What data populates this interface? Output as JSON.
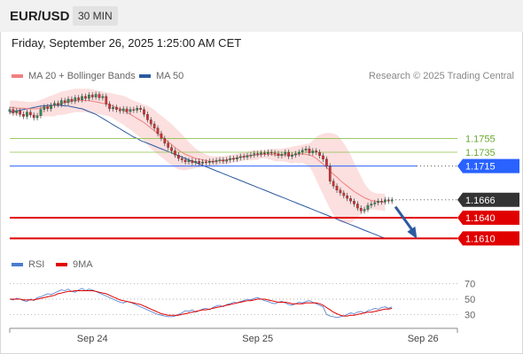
{
  "header": {
    "pair": "EUR/USD",
    "timeframe": "30 MIN"
  },
  "datetime": "Friday, September 26, 2025 1:25:00 AM CET",
  "legend": {
    "ma20_label": "MA 20 + Bollinger Bands",
    "ma20_color": "#f08080",
    "ma50_label": "MA 50",
    "ma50_color": "#2c5aa0"
  },
  "credit": "Research © 2025 Trading Central",
  "rsi_legend": {
    "rsi_label": "RSI",
    "rsi_color": "#4a7bd0",
    "ma_label": "9MA",
    "ma_color": "#e00000"
  },
  "chart_data": [
    {
      "type": "line",
      "title": "",
      "price_range": [
        1.159,
        1.183
      ],
      "time_range": [
        0,
        130
      ],
      "x_ticks": [
        {
          "t": 24,
          "label": "Sep 24"
        },
        {
          "t": 72,
          "label": "Sep 25"
        },
        {
          "t": 120,
          "label": "Sep 26"
        }
      ],
      "levels": [
        {
          "name": "resistance-2",
          "value": 1.1755,
          "label": "1.1755",
          "color": "#8bc34a",
          "style": "thin"
        },
        {
          "name": "resistance-1",
          "value": 1.1735,
          "label": "1.1735",
          "color": "#8bc34a",
          "style": "thin"
        },
        {
          "name": "pivot",
          "value": 1.1715,
          "label": "1.1715",
          "color": "#2962ff",
          "style": "tag"
        },
        {
          "name": "last-price",
          "value": 1.1666,
          "label": "1.1666",
          "color": "#333333",
          "style": "tag"
        },
        {
          "name": "support-1",
          "value": 1.164,
          "label": "1.1640",
          "color": "#e00000",
          "style": "tag"
        },
        {
          "name": "support-2",
          "value": 1.161,
          "label": "1.1610",
          "color": "#e00000",
          "style": "tag"
        }
      ],
      "close": [
        1.1797,
        1.1792,
        1.1795,
        1.179,
        1.1787,
        1.1793,
        1.1789,
        1.1785,
        1.1788,
        1.1797,
        1.1801,
        1.1798,
        1.1803,
        1.1806,
        1.1804,
        1.181,
        1.1807,
        1.1812,
        1.1809,
        1.1814,
        1.1811,
        1.1816,
        1.1813,
        1.1818,
        1.1815,
        1.1819,
        1.1814,
        1.1816,
        1.1805,
        1.1798,
        1.18,
        1.1797,
        1.1795,
        1.1798,
        1.1794,
        1.1797,
        1.1796,
        1.1799,
        1.1797,
        1.179,
        1.1782,
        1.1776,
        1.177,
        1.1762,
        1.1755,
        1.1748,
        1.1742,
        1.1737,
        1.1731,
        1.1726,
        1.1724,
        1.1721,
        1.1723,
        1.172,
        1.1722,
        1.1719,
        1.1721,
        1.172,
        1.1722,
        1.1721,
        1.1723,
        1.1724,
        1.1722,
        1.1724,
        1.1726,
        1.1725,
        1.1727,
        1.1729,
        1.1728,
        1.173,
        1.1731,
        1.1733,
        1.1732,
        1.1734,
        1.1733,
        1.1735,
        1.1734,
        1.1733,
        1.173,
        1.1732,
        1.1735,
        1.1729,
        1.1731,
        1.1733,
        1.1735,
        1.1738,
        1.174,
        1.1734,
        1.1737,
        1.1735,
        1.173,
        1.1725,
        1.1715,
        1.1693,
        1.1686,
        1.168,
        1.1676,
        1.1672,
        1.1668,
        1.1664,
        1.166,
        1.1654,
        1.165,
        1.1652,
        1.1658,
        1.166,
        1.1662,
        1.1664,
        1.1663,
        1.1666,
        1.1664,
        1.1666
      ],
      "ma20": [
        1.18,
        1.18,
        1.1799,
        1.1799,
        1.1799,
        1.1798,
        1.1798,
        1.1798,
        1.1798,
        1.1799,
        1.18,
        1.1801,
        1.1802,
        1.1803,
        1.1805,
        1.1806,
        1.1807,
        1.1808,
        1.1809,
        1.181,
        1.181,
        1.181,
        1.181,
        1.181,
        1.1809,
        1.1808,
        1.1807,
        1.1806,
        1.1805,
        1.1804,
        1.1802,
        1.18,
        1.1798,
        1.1796,
        1.1793,
        1.179,
        1.1787,
        1.1784,
        1.1781,
        1.1778,
        1.1774,
        1.177,
        1.1766,
        1.1762,
        1.1758,
        1.1754,
        1.175,
        1.1746,
        1.1742,
        1.1738,
        1.1735,
        1.1732,
        1.173,
        1.1728,
        1.1726,
        1.1725,
        1.1724,
        1.1723,
        1.1722,
        1.1722,
        1.1722,
        1.1723,
        1.1723,
        1.1724,
        1.1725,
        1.1726,
        1.1727,
        1.1728,
        1.1729,
        1.173,
        1.173,
        1.1731,
        1.1731,
        1.1732,
        1.1732,
        1.1732,
        1.1732,
        1.1731,
        1.1731,
        1.1731,
        1.1731,
        1.1731,
        1.1731,
        1.1732,
        1.1732,
        1.1733,
        1.1732,
        1.1731,
        1.1729,
        1.1726,
        1.1722,
        1.1718,
        1.1713,
        1.1708,
        1.1703,
        1.1699,
        1.1694,
        1.169,
        1.1686,
        1.1682,
        1.1678,
        1.1675,
        1.1672,
        1.1669,
        1.1667,
        1.1665,
        1.1664,
        1.1663,
        1.1663,
        1.1662
      ],
      "bb_upper": [
        1.181,
        1.181,
        1.181,
        1.1809,
        1.1809,
        1.1808,
        1.1808,
        1.1808,
        1.1809,
        1.1811,
        1.1813,
        1.1815,
        1.1817,
        1.1819,
        1.1821,
        1.1823,
        1.1824,
        1.1825,
        1.1826,
        1.1827,
        1.1827,
        1.1827,
        1.1827,
        1.1827,
        1.1826,
        1.1825,
        1.1824,
        1.1823,
        1.1822,
        1.1821,
        1.182,
        1.1819,
        1.1818,
        1.1817,
        1.1815,
        1.1812,
        1.181,
        1.1808,
        1.1806,
        1.1804,
        1.1802,
        1.18,
        1.1796,
        1.1792,
        1.1788,
        1.1784,
        1.178,
        1.1776,
        1.1771,
        1.1766,
        1.1761,
        1.1755,
        1.175,
        1.1745,
        1.174,
        1.1737,
        1.1734,
        1.1732,
        1.173,
        1.1729,
        1.1729,
        1.1729,
        1.1729,
        1.173,
        1.1731,
        1.1732,
        1.1733,
        1.1734,
        1.1735,
        1.1736,
        1.1737,
        1.1738,
        1.1738,
        1.1738,
        1.1738,
        1.1739,
        1.174,
        1.174,
        1.174,
        1.174,
        1.1741,
        1.1742,
        1.1743,
        1.1744,
        1.1745,
        1.1746,
        1.1747,
        1.1748,
        1.1752,
        1.1757,
        1.176,
        1.1762,
        1.1763,
        1.1763,
        1.1762,
        1.176,
        1.1755,
        1.1748,
        1.174,
        1.1731,
        1.172,
        1.171,
        1.17,
        1.169,
        1.1683,
        1.1678,
        1.1676,
        1.1675,
        1.1675,
        1.1675
      ],
      "bb_lower": [
        1.179,
        1.179,
        1.1788,
        1.1789,
        1.1789,
        1.1788,
        1.1788,
        1.1788,
        1.1787,
        1.1787,
        1.1787,
        1.1787,
        1.1787,
        1.1787,
        1.1789,
        1.1789,
        1.179,
        1.1791,
        1.1792,
        1.1793,
        1.1793,
        1.1793,
        1.1793,
        1.1793,
        1.1792,
        1.1791,
        1.179,
        1.1789,
        1.1788,
        1.1787,
        1.1784,
        1.1781,
        1.1778,
        1.1775,
        1.1771,
        1.1768,
        1.1764,
        1.176,
        1.1756,
        1.1752,
        1.1746,
        1.174,
        1.1736,
        1.1732,
        1.1728,
        1.1724,
        1.172,
        1.1716,
        1.1713,
        1.171,
        1.1709,
        1.1709,
        1.171,
        1.1711,
        1.1712,
        1.1713,
        1.1714,
        1.1714,
        1.1714,
        1.1715,
        1.1715,
        1.1717,
        1.1717,
        1.1718,
        1.1719,
        1.172,
        1.1721,
        1.1722,
        1.1723,
        1.1724,
        1.1723,
        1.1724,
        1.1724,
        1.1726,
        1.1726,
        1.1725,
        1.1724,
        1.1722,
        1.1722,
        1.1722,
        1.1721,
        1.172,
        1.1719,
        1.172,
        1.1719,
        1.172,
        1.1717,
        1.1714,
        1.1706,
        1.1695,
        1.1684,
        1.1674,
        1.1663,
        1.1653,
        1.1644,
        1.1638,
        1.1633,
        1.1632,
        1.1632,
        1.1633,
        1.1636,
        1.164,
        1.1644,
        1.1648,
        1.1651,
        1.1652,
        1.1652,
        1.1651,
        1.1651,
        1.1649
      ],
      "ma50": [
        1.1793,
        1.1794,
        1.1795,
        1.1796,
        1.1797,
        1.1798,
        1.1799,
        1.18,
        1.1801,
        1.1802,
        1.1802,
        1.1803,
        1.1803,
        1.1803,
        1.1803,
        1.1803,
        1.1802,
        1.1802,
        1.1801,
        1.18,
        1.1799,
        1.1798,
        1.1796,
        1.1794,
        1.1792,
        1.179,
        1.1787,
        1.1784,
        1.1781,
        1.1778,
        1.1775,
        1.1772,
        1.1769,
        1.1766,
        1.1763,
        1.176,
        1.1757,
        1.1755,
        1.1752,
        1.175,
        1.1748,
        1.1746,
        1.1744,
        1.1742,
        1.174,
        1.1738,
        1.1736,
        1.1734,
        1.1732,
        1.173,
        1.1728,
        1.1726,
        1.1724,
        1.1722,
        1.172,
        1.1718,
        1.1716,
        1.1714,
        1.1712,
        1.171,
        1.1708,
        1.1706,
        1.1704,
        1.1702,
        1.17,
        1.1698,
        1.1696,
        1.1694,
        1.1692,
        1.169,
        1.1688,
        1.1686,
        1.1684,
        1.1682,
        1.168,
        1.1678,
        1.1676,
        1.1674,
        1.1672,
        1.167,
        1.1668,
        1.1666,
        1.1664,
        1.1662,
        1.166,
        1.1658,
        1.1656,
        1.1654,
        1.1652,
        1.165,
        1.1648,
        1.1646,
        1.1644,
        1.1642,
        1.164,
        1.1638,
        1.1636,
        1.1634,
        1.1632,
        1.163,
        1.1628,
        1.1626,
        1.1624,
        1.1622,
        1.162,
        1.1618,
        1.1616,
        1.1614,
        1.1612,
        1.161
      ],
      "forecast": [
        [
          112,
          1.1656
        ],
        [
          118,
          1.1612
        ]
      ]
    },
    {
      "type": "line",
      "title": "",
      "y_range": [
        20,
        80
      ],
      "y_ticks": [
        70,
        50,
        30
      ],
      "rsi": [
        50,
        49,
        51,
        50,
        48,
        47,
        50,
        48,
        52,
        53,
        55,
        57,
        56,
        58,
        60,
        62,
        61,
        63,
        60,
        59,
        62,
        64,
        61,
        63,
        62,
        60,
        58,
        56,
        54,
        52,
        50,
        48,
        46,
        45,
        47,
        46,
        44,
        42,
        40,
        38,
        36,
        34,
        32,
        30,
        29,
        28,
        27,
        27,
        28,
        30,
        32,
        35,
        34,
        36,
        33,
        35,
        37,
        38,
        36,
        39,
        41,
        42,
        40,
        43,
        44,
        46,
        45,
        47,
        48,
        50,
        49,
        51,
        52,
        50,
        48,
        47,
        45,
        44,
        46,
        47,
        45,
        43,
        42,
        44,
        46,
        45,
        47,
        48,
        46,
        44,
        42,
        40,
        30,
        28,
        27,
        26,
        27,
        28,
        30,
        32,
        31,
        33,
        34,
        32,
        35,
        36,
        38,
        37,
        39,
        40,
        38,
        40
      ],
      "rsi_ma": [
        50,
        50,
        50,
        50,
        49,
        49,
        49,
        49,
        50,
        51,
        52,
        53,
        54,
        55,
        57,
        58,
        59,
        60,
        60,
        61,
        61,
        61,
        61,
        61,
        61,
        60,
        59,
        58,
        57,
        55,
        53,
        51,
        49,
        48,
        47,
        46,
        45,
        44,
        43,
        41,
        39,
        37,
        35,
        33,
        31,
        30,
        29,
        29,
        29,
        29,
        30,
        31,
        32,
        33,
        34,
        35,
        36,
        36,
        37,
        38,
        39,
        40,
        41,
        42,
        43,
        44,
        45,
        46,
        47,
        48,
        48,
        49,
        50,
        50,
        50,
        49,
        48,
        47,
        46,
        46,
        46,
        45,
        44,
        44,
        44,
        44,
        45,
        45,
        45,
        45,
        44,
        42,
        39,
        36,
        33,
        31,
        29,
        28,
        28,
        29,
        29,
        30,
        31,
        32,
        33,
        33,
        34,
        35,
        36,
        37,
        37,
        38
      ]
    }
  ]
}
